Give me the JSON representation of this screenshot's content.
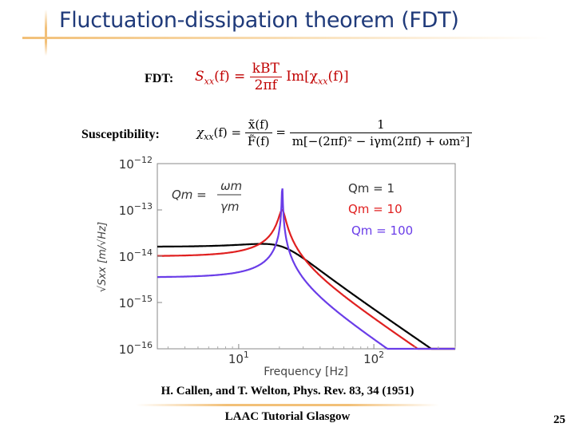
{
  "slide": {
    "title": "Fluctuation-dissipation theorem (FDT)",
    "fdt_label": "FDT:",
    "susceptibility_label": "Susceptibility:",
    "reference": "H. Callen, and T. Welton, Phys. Rev. 83, 34 (1951)",
    "footer": "LAAC Tutorial Glasgow",
    "page_number": "25"
  },
  "colors": {
    "title": "#1f3a7a",
    "fdt_equation": "#c00000",
    "q1": "#000000",
    "q10": "#e02020",
    "q100": "#6a3de8",
    "accent_line": "#f2c078"
  },
  "equations": {
    "fdt": {
      "lhs": "S",
      "lhs_sub": "xx",
      "lhs_arg": "(f) =",
      "num": "kBT",
      "den": "2πf",
      "rhs": "Im[χ",
      "rhs_sub": "xx",
      "rhs_arg": "(f)]"
    },
    "susceptibility": {
      "lhs": "χ",
      "lhs_sub": "xx",
      "lhs_arg": "(f) =",
      "frac1_num": "x̃(f)",
      "frac1_den": "F̃(f)",
      "equals": "=",
      "frac2_num": "1",
      "frac2_den": "m[−(2πf)² − iγm(2πf) + ωm²]"
    }
  },
  "chart_data": {
    "type": "line",
    "xlabel": "Frequency [Hz]",
    "ylabel": "√Sxx [m/√Hz]",
    "xscale": "log",
    "yscale": "log",
    "xlim": [
      2.5,
      400
    ],
    "ylim": [
      1e-16,
      1e-12
    ],
    "x_ticks": [
      {
        "value": 10,
        "label_base": "10",
        "label_exp": "1"
      },
      {
        "value": 100,
        "label_base": "10",
        "label_exp": "2"
      }
    ],
    "y_ticks": [
      {
        "value": 1e-12,
        "label_base": "10",
        "label_exp": "−12"
      },
      {
        "value": 1e-13,
        "label_base": "10",
        "label_exp": "−13"
      },
      {
        "value": 1e-14,
        "label_base": "10",
        "label_exp": "−14"
      },
      {
        "value": 1e-15,
        "label_base": "10",
        "label_exp": "−15"
      },
      {
        "value": 1e-16,
        "label_base": "10",
        "label_exp": "−16"
      }
    ],
    "annotation": {
      "lhs": "Qm =",
      "num": "ωm",
      "den": "γm"
    },
    "resonance_frequency": 21,
    "series": [
      {
        "name": "Qm = 1",
        "Q": 1,
        "color": "#000000",
        "amplitude_low": 1.6e-14
      },
      {
        "name": "Qm = 10",
        "Q": 10,
        "color": "#e02020",
        "amplitude_low": 1e-14
      },
      {
        "name": "Qm = 100",
        "Q": 100,
        "color": "#6a3de8",
        "amplitude_low": 3.5e-15
      }
    ],
    "legend_position": "top-right",
    "grid": false
  }
}
